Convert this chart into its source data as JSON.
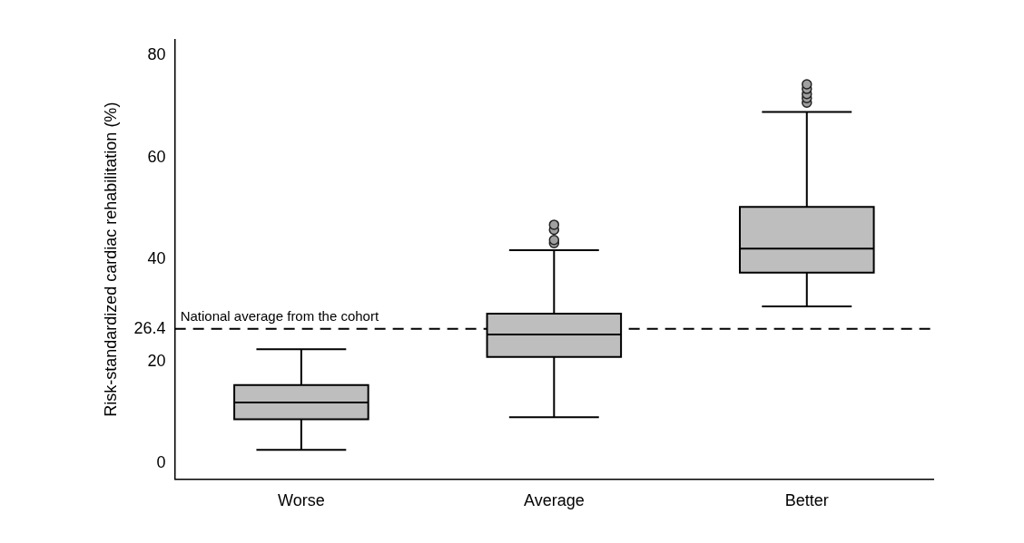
{
  "chart_data": {
    "type": "box",
    "ylabel": "Risk-standardized cardiac rehabilitation (%)",
    "categories": [
      "Worse",
      "Average",
      "Better"
    ],
    "color": "#bebebe",
    "boxes": [
      {
        "low": 2.7,
        "q1": 8.7,
        "median": 12.0,
        "q3": 15.4,
        "high": 22.4
      },
      {
        "low": 9.1,
        "q1": 20.9,
        "median": 25.3,
        "q3": 29.4,
        "high": 41.8,
        "outliers": [
          43.2,
          43.8,
          45.8,
          46.8
        ]
      },
      {
        "low": 30.8,
        "q1": 37.4,
        "median": 42.1,
        "q3": 50.3,
        "high": 68.9,
        "outliers": [
          70.7,
          71.6,
          72.4,
          73.4,
          74.3
        ]
      }
    ],
    "ylim": [
      -3,
      83
    ],
    "yticks": [
      0,
      20,
      26.4,
      40,
      60,
      80
    ],
    "ref_lines": [
      {
        "axis": "y",
        "value": 26.4,
        "label": "National average from the cohort",
        "color": "#000000",
        "line_style": "dashed"
      }
    ]
  }
}
